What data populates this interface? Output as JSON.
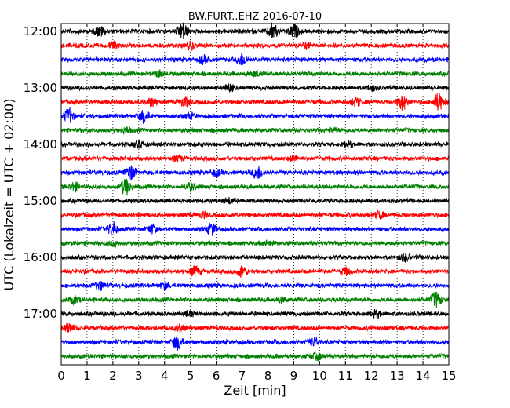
{
  "chart_data": {
    "type": "line",
    "title": "BW.FURT..EHZ 2016-07-10",
    "xlabel": "Zeit  [min]",
    "ylabel": "UTC (Lokalzeit = UTC + 02:00)",
    "xlim": [
      0,
      15
    ],
    "x_ticks": [
      "0",
      "1",
      "2",
      "3",
      "4",
      "5",
      "6",
      "7",
      "8",
      "9",
      "10",
      "11",
      "12",
      "13",
      "14",
      "15"
    ],
    "y_tick_labels": [
      "12:00",
      "13:00",
      "14:00",
      "15:00",
      "16:00",
      "17:00"
    ],
    "grid": true,
    "trace_colors": [
      "#000000",
      "#ff0000",
      "#0000ff",
      "#008000"
    ],
    "series": [
      {
        "start": "12:00",
        "bursts": [
          [
            1.5,
            0.6
          ],
          [
            4.7,
            1.0
          ],
          [
            8.2,
            1.0
          ],
          [
            9.0,
            0.8
          ]
        ]
      },
      {
        "start": "12:15",
        "bursts": [
          [
            2.0,
            0.4
          ],
          [
            5.0,
            0.4
          ],
          [
            9.5,
            0.3
          ]
        ]
      },
      {
        "start": "12:30",
        "bursts": [
          [
            7.0,
            0.7
          ],
          [
            5.5,
            0.4
          ]
        ]
      },
      {
        "start": "12:45",
        "bursts": [
          [
            3.8,
            0.4
          ],
          [
            7.5,
            0.3
          ]
        ]
      },
      {
        "start": "13:00",
        "bursts": [
          [
            6.5,
            0.4
          ],
          [
            12.0,
            0.3
          ]
        ]
      },
      {
        "start": "13:15",
        "bursts": [
          [
            3.5,
            0.5
          ],
          [
            4.8,
            0.6
          ],
          [
            11.4,
            0.5
          ],
          [
            13.2,
            0.9
          ],
          [
            14.6,
            1.0
          ]
        ]
      },
      {
        "start": "13:30",
        "bursts": [
          [
            0.3,
            0.9
          ],
          [
            3.2,
            0.7
          ],
          [
            5.0,
            0.3
          ]
        ]
      },
      {
        "start": "13:45",
        "bursts": [
          [
            2.5,
            0.3
          ],
          [
            10.5,
            0.3
          ]
        ]
      },
      {
        "start": "14:00",
        "bursts": [
          [
            3.0,
            0.4
          ],
          [
            11.1,
            0.3
          ]
        ]
      },
      {
        "start": "14:15",
        "bursts": [
          [
            4.5,
            0.3
          ],
          [
            9.0,
            0.3
          ]
        ]
      },
      {
        "start": "14:30",
        "bursts": [
          [
            2.7,
            0.8
          ],
          [
            7.6,
            0.8
          ],
          [
            6.0,
            0.4
          ]
        ]
      },
      {
        "start": "14:45",
        "bursts": [
          [
            0.5,
            0.5
          ],
          [
            2.5,
            1.0
          ],
          [
            5.0,
            0.4
          ]
        ]
      },
      {
        "start": "15:00",
        "bursts": [
          [
            6.5,
            0.3
          ]
        ]
      },
      {
        "start": "15:15",
        "bursts": [
          [
            5.5,
            0.3
          ],
          [
            12.3,
            0.4
          ]
        ]
      },
      {
        "start": "15:30",
        "bursts": [
          [
            2.0,
            0.8
          ],
          [
            3.5,
            0.5
          ],
          [
            5.8,
            0.7
          ]
        ]
      },
      {
        "start": "15:45",
        "bursts": [
          [
            2.0,
            0.3
          ],
          [
            8.0,
            0.3
          ]
        ]
      },
      {
        "start": "16:00",
        "bursts": [
          [
            13.3,
            0.4
          ]
        ]
      },
      {
        "start": "16:15",
        "bursts": [
          [
            5.2,
            0.6
          ],
          [
            7.0,
            0.7
          ],
          [
            11.0,
            0.4
          ]
        ]
      },
      {
        "start": "16:30",
        "bursts": [
          [
            1.5,
            0.5
          ],
          [
            4.0,
            0.3
          ]
        ]
      },
      {
        "start": "16:45",
        "bursts": [
          [
            0.5,
            0.4
          ],
          [
            8.5,
            0.3
          ],
          [
            14.5,
            0.9
          ]
        ]
      },
      {
        "start": "17:00",
        "bursts": [
          [
            5.0,
            0.3
          ],
          [
            12.2,
            0.4
          ]
        ]
      },
      {
        "start": "17:15",
        "bursts": [
          [
            0.3,
            0.5
          ],
          [
            4.6,
            0.4
          ]
        ]
      },
      {
        "start": "17:30",
        "bursts": [
          [
            4.5,
            0.8
          ],
          [
            9.8,
            0.5
          ]
        ]
      },
      {
        "start": "17:45",
        "bursts": [
          [
            9.9,
            0.4
          ]
        ]
      }
    ]
  }
}
